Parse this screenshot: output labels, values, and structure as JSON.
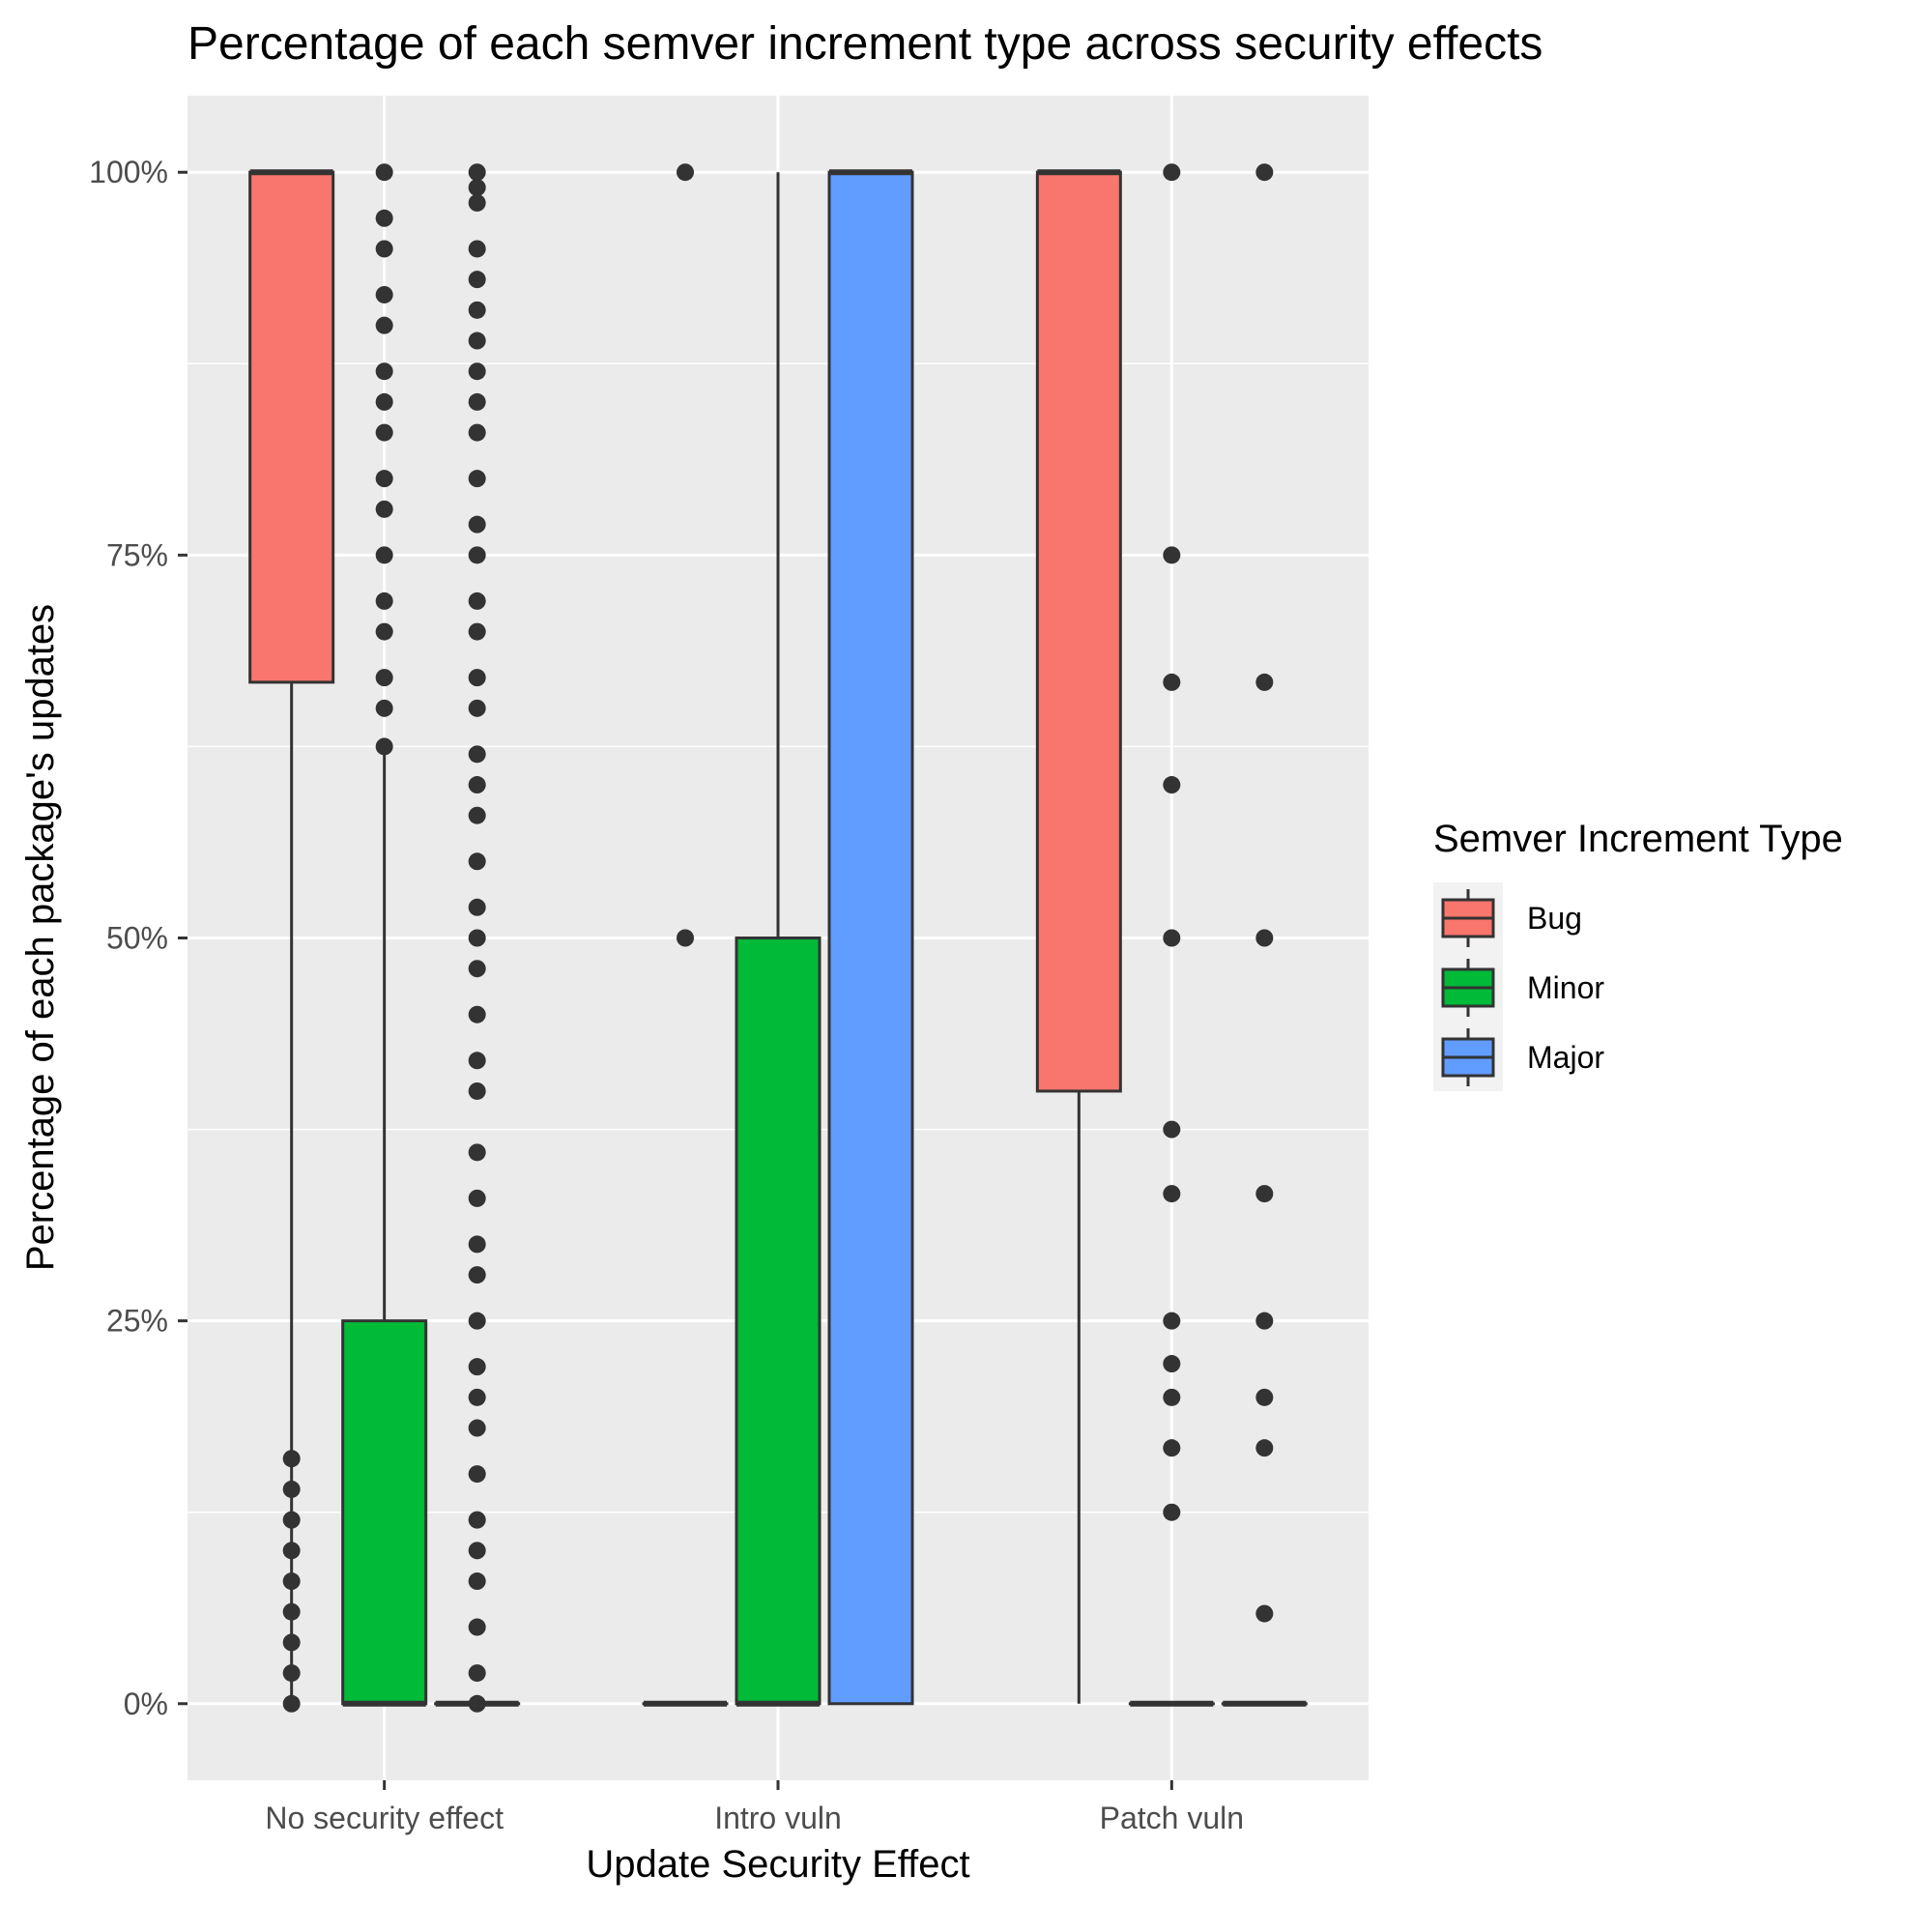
{
  "chart_data": {
    "type": "boxplot",
    "title": "Percentage of each semver increment type across security effects",
    "xlabel": "Update Security Effect",
    "ylabel": "Percentage of each package's updates",
    "ylim": [
      -0.05,
      1.05
    ],
    "y_ticks": [
      0,
      0.25,
      0.5,
      0.75,
      1.0
    ],
    "y_tick_labels": [
      "0%",
      "25%",
      "50%",
      "75%",
      "100%"
    ],
    "y_minor_ticks": [
      0.125,
      0.375,
      0.625,
      0.875
    ],
    "categories": [
      "No security effect",
      "Intro vuln",
      "Patch vuln"
    ],
    "legend": {
      "title": "Semver Increment Type",
      "position": "right"
    },
    "grid": true,
    "series": [
      {
        "name": "Bug",
        "color": "#F8766D",
        "boxes": [
          {
            "q1": 0.667,
            "median": 1.0,
            "q3": 1.0,
            "whisker_low": 0.0,
            "whisker_high": 1.0,
            "outliers": [
              0.0,
              0.02,
              0.04,
              0.06,
              0.08,
              0.1,
              0.12,
              0.14,
              0.16
            ]
          },
          {
            "q1": 0.0,
            "median": 0.0,
            "q3": 0.0,
            "whisker_low": 0.0,
            "whisker_high": 0.0,
            "outliers": [
              0.5,
              1.0
            ]
          },
          {
            "q1": 0.4,
            "median": 1.0,
            "q3": 1.0,
            "whisker_low": 0.0,
            "whisker_high": 1.0,
            "outliers": []
          }
        ]
      },
      {
        "name": "Minor",
        "color": "#00BA38",
        "boxes": [
          {
            "q1": 0.0,
            "median": 0.0,
            "q3": 0.25,
            "whisker_low": 0.0,
            "whisker_high": 0.625,
            "outliers": [
              0.625,
              0.65,
              0.67,
              0.7,
              0.72,
              0.75,
              0.78,
              0.8,
              0.83,
              0.85,
              0.87,
              0.9,
              0.92,
              0.95,
              0.97,
              1.0
            ]
          },
          {
            "q1": 0.0,
            "median": 0.0,
            "q3": 0.5,
            "whisker_low": 0.0,
            "whisker_high": 1.0,
            "outliers": []
          },
          {
            "q1": 0.0,
            "median": 0.0,
            "q3": 0.0,
            "whisker_low": 0.0,
            "whisker_high": 0.0,
            "outliers": [
              0.125,
              0.167,
              0.2,
              0.222,
              0.25,
              0.333,
              0.375,
              0.5,
              0.6,
              0.667,
              0.75,
              1.0
            ]
          }
        ]
      },
      {
        "name": "Major",
        "color": "#619CFF",
        "boxes": [
          {
            "q1": 0.0,
            "median": 0.0,
            "q3": 0.0,
            "whisker_low": 0.0,
            "whisker_high": 0.0,
            "outliers": [
              0.0,
              0.02,
              0.05,
              0.08,
              0.1,
              0.12,
              0.15,
              0.18,
              0.2,
              0.22,
              0.25,
              0.28,
              0.3,
              0.33,
              0.36,
              0.4,
              0.42,
              0.45,
              0.48,
              0.5,
              0.52,
              0.55,
              0.58,
              0.6,
              0.62,
              0.65,
              0.67,
              0.7,
              0.72,
              0.75,
              0.77,
              0.8,
              0.83,
              0.85,
              0.87,
              0.89,
              0.91,
              0.93,
              0.95,
              0.98,
              0.99,
              1.0
            ]
          },
          {
            "q1": 0.0,
            "median": 1.0,
            "q3": 1.0,
            "whisker_low": 0.0,
            "whisker_high": 1.0,
            "outliers": []
          },
          {
            "q1": 0.0,
            "median": 0.0,
            "q3": 0.0,
            "whisker_low": 0.0,
            "whisker_high": 0.0,
            "outliers": [
              0.0588,
              0.167,
              0.2,
              0.25,
              0.333,
              0.5,
              0.667,
              1.0
            ]
          }
        ]
      }
    ]
  }
}
